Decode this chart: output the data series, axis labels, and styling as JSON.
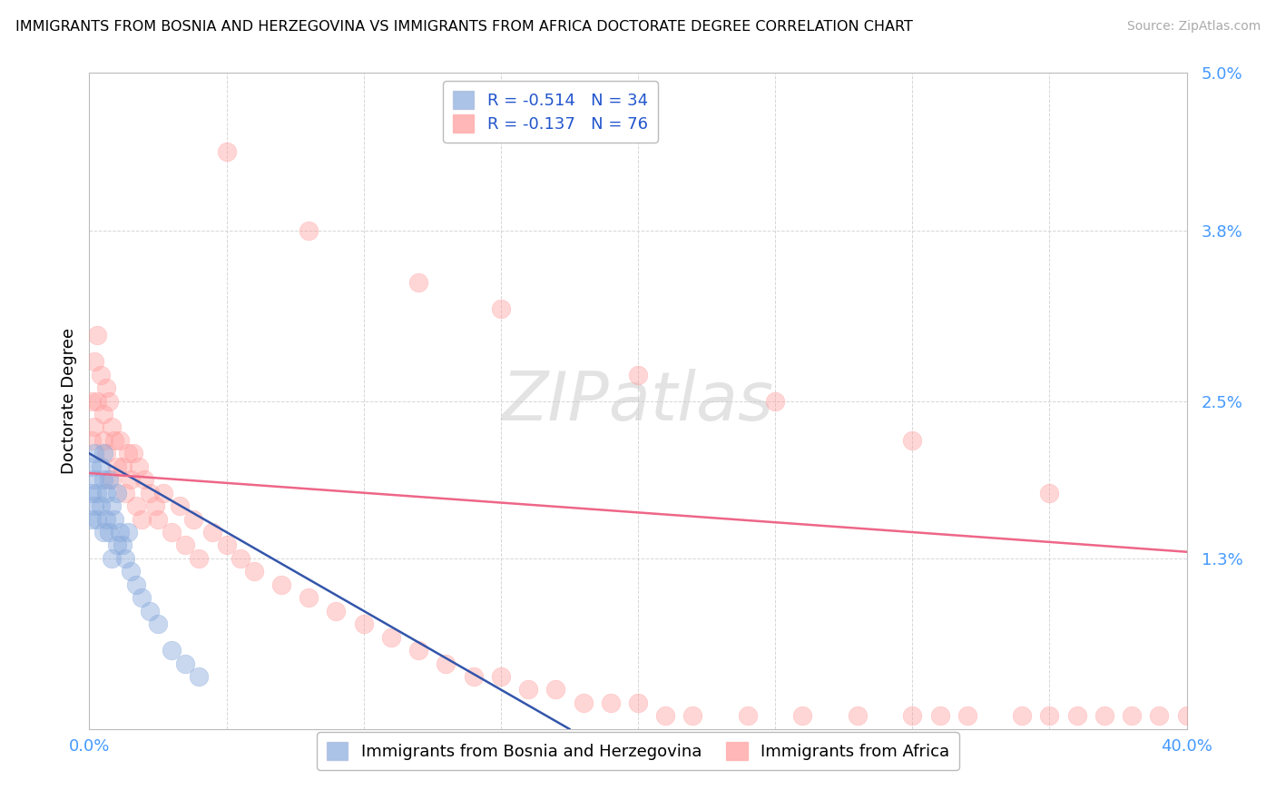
{
  "title": "IMMIGRANTS FROM BOSNIA AND HERZEGOVINA VS IMMIGRANTS FROM AFRICA DOCTORATE DEGREE CORRELATION CHART",
  "source": "Source: ZipAtlas.com",
  "ylabel": "Doctorate Degree",
  "color_bosnia": "#88AADD",
  "color_africa": "#FF9999",
  "color_line_bosnia": "#3355AA",
  "color_line_africa": "#EE6688",
  "xmin": 0.0,
  "xmax": 0.4,
  "ymin": 0.0,
  "ymax": 0.05,
  "r_bosnia": -0.514,
  "n_bosnia": 34,
  "r_africa": -0.137,
  "n_africa": 76,
  "bosnia_line_x0": 0.0,
  "bosnia_line_y0": 0.021,
  "bosnia_line_x1": 0.175,
  "bosnia_line_y1": 0.0,
  "africa_line_x0": 0.0,
  "africa_line_y0": 0.0195,
  "africa_line_x1": 0.4,
  "africa_line_y1": 0.0135,
  "bosnia_x": [
    0.001,
    0.001,
    0.001,
    0.002,
    0.002,
    0.002,
    0.003,
    0.003,
    0.004,
    0.004,
    0.005,
    0.005,
    0.005,
    0.006,
    0.006,
    0.007,
    0.007,
    0.008,
    0.008,
    0.009,
    0.01,
    0.01,
    0.011,
    0.012,
    0.013,
    0.014,
    0.015,
    0.017,
    0.019,
    0.022,
    0.025,
    0.03,
    0.035,
    0.04
  ],
  "bosnia_y": [
    0.018,
    0.016,
    0.02,
    0.019,
    0.017,
    0.021,
    0.018,
    0.016,
    0.02,
    0.017,
    0.019,
    0.015,
    0.021,
    0.018,
    0.016,
    0.019,
    0.015,
    0.017,
    0.013,
    0.016,
    0.018,
    0.014,
    0.015,
    0.014,
    0.013,
    0.015,
    0.012,
    0.011,
    0.01,
    0.009,
    0.008,
    0.006,
    0.005,
    0.004
  ],
  "africa_x": [
    0.001,
    0.001,
    0.002,
    0.002,
    0.003,
    0.003,
    0.004,
    0.005,
    0.005,
    0.006,
    0.006,
    0.007,
    0.008,
    0.008,
    0.009,
    0.01,
    0.011,
    0.012,
    0.013,
    0.014,
    0.015,
    0.016,
    0.017,
    0.018,
    0.019,
    0.02,
    0.022,
    0.024,
    0.025,
    0.027,
    0.03,
    0.033,
    0.035,
    0.038,
    0.04,
    0.045,
    0.05,
    0.055,
    0.06,
    0.07,
    0.08,
    0.09,
    0.1,
    0.11,
    0.12,
    0.13,
    0.14,
    0.15,
    0.16,
    0.17,
    0.18,
    0.19,
    0.2,
    0.21,
    0.22,
    0.24,
    0.26,
    0.28,
    0.3,
    0.31,
    0.32,
    0.34,
    0.35,
    0.36,
    0.37,
    0.38,
    0.39,
    0.4,
    0.05,
    0.08,
    0.12,
    0.15,
    0.2,
    0.25,
    0.3,
    0.35
  ],
  "africa_y": [
    0.025,
    0.022,
    0.028,
    0.023,
    0.03,
    0.025,
    0.027,
    0.024,
    0.022,
    0.026,
    0.021,
    0.025,
    0.023,
    0.019,
    0.022,
    0.02,
    0.022,
    0.02,
    0.018,
    0.021,
    0.019,
    0.021,
    0.017,
    0.02,
    0.016,
    0.019,
    0.018,
    0.017,
    0.016,
    0.018,
    0.015,
    0.017,
    0.014,
    0.016,
    0.013,
    0.015,
    0.014,
    0.013,
    0.012,
    0.011,
    0.01,
    0.009,
    0.008,
    0.007,
    0.006,
    0.005,
    0.004,
    0.004,
    0.003,
    0.003,
    0.002,
    0.002,
    0.002,
    0.001,
    0.001,
    0.001,
    0.001,
    0.001,
    0.001,
    0.001,
    0.001,
    0.001,
    0.001,
    0.001,
    0.001,
    0.001,
    0.001,
    0.001,
    0.044,
    0.038,
    0.034,
    0.032,
    0.027,
    0.025,
    0.022,
    0.018
  ]
}
